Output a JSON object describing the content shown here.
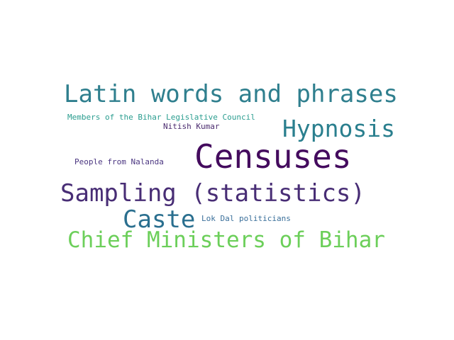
{
  "words": [
    {
      "id": "latin",
      "text": "Latin words and phrases",
      "color": "#2f7f8e"
    },
    {
      "id": "council",
      "text": "Members of the Bihar Legislative Council",
      "color": "#2a9d8f"
    },
    {
      "id": "nitish",
      "text": "Nitish Kumar",
      "color": "#4a2a6e"
    },
    {
      "id": "hypnosis",
      "text": "Hypnosis",
      "color": "#2a7f8e"
    },
    {
      "id": "censuses",
      "text": "Censuses",
      "color": "#440b5e"
    },
    {
      "id": "nalanda",
      "text": "People from Nalanda",
      "color": "#4a3580"
    },
    {
      "id": "sampling",
      "text": "Sampling (statistics)",
      "color": "#482d75"
    },
    {
      "id": "caste",
      "text": "Caste",
      "color": "#2a6f8f"
    },
    {
      "id": "lokdal",
      "text": "Lok Dal politicians",
      "color": "#3a6f9a"
    },
    {
      "id": "chief",
      "text": "Chief Ministers of Bihar",
      "color": "#6ccf5a"
    }
  ]
}
